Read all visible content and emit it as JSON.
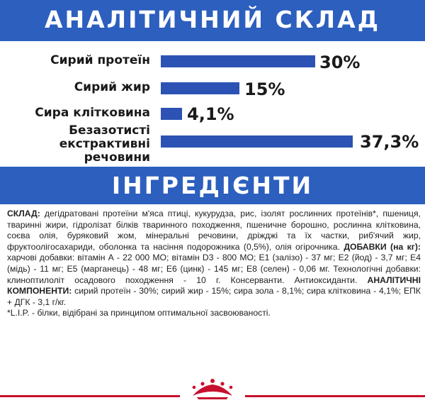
{
  "analysis": {
    "title": "АНАЛІТИЧНИЙ СКЛАД",
    "rows": [
      {
        "label": "Сирий протеїн",
        "value_text": "30%",
        "value": 30
      },
      {
        "label": "Сирий жир",
        "value_text": "15%",
        "value": 15
      },
      {
        "label": "Сира клітковина",
        "value_text": "4,1%",
        "value": 4.1
      },
      {
        "label": "Безазотисті екстрактивні речовини",
        "value_text": "37,3%",
        "value": 37.3
      }
    ]
  },
  "ingredients": {
    "title": "ІНГРЕДІЄНТИ",
    "composition_label": "СКЛАД:",
    "composition_text": " дегідратовані протеїни м'яса птиці, кукурудза, рис, ізолят рослинних протеїнів*, пшениця, тваринні жири, гідролізат білків тваринного походження, пшеничне борошно, рослинна клітковина, соєва олія, буряковий жом, мінеральні речовини, дріжджі та їх частки, риб'ячий жир, фруктоолігосахариди, оболонка та насіння подорожника (0,5%), олія огірочника. ",
    "additives_label": "ДОБАВКИ (на кг):",
    "additives_text": " харчові добавки: вітамін А - 22 000 МО; вітамін D3 - 800 МО; E1 (залізо) - 37 мг; E2 (йод) - 3,7 мг; E4 (мідь) - 11 мг; E5 (марганець) - 48 мг; E6 (цинк) - 145 мг; E8 (селен) - 0,06 мг. Технологічні добавки: клиноптилоліт осадового походження - 10 г. Консерванти. Антиоксиданти. ",
    "components_label": "АНАЛІТИЧНІ КОМПОНЕНТИ:",
    "components_text": " сирий протеїн - 30%; сирий жир - 15%; сира зола - 8,1%; сира клітковина - 4,1%; ЕПК + ДГК - 3,1 г/кг.",
    "footnote": "*L.I.P. - білки, відібрані за принципом оптимальної засвоюваності."
  },
  "colors": {
    "banner": "#2c5fbe",
    "bar": "#2c52b4",
    "footer_line": "#c8102e"
  },
  "footer": {
    "logo_icon": "royal-canin-crown-icon"
  }
}
